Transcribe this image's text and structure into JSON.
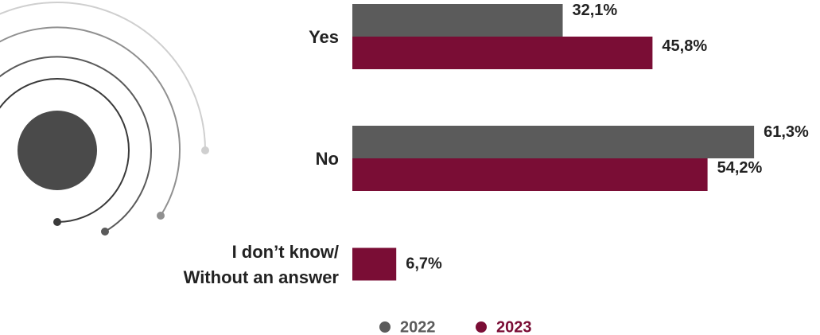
{
  "chart_data": {
    "type": "bar",
    "orientation": "horizontal",
    "categories": [
      "Yes",
      "No",
      "I don’t know/\nWithout an answer"
    ],
    "series": [
      {
        "name": "2022",
        "color": "#5b5b5b",
        "values": [
          32.1,
          61.3,
          null
        ],
        "value_labels": [
          "32,1%",
          "61,3%",
          null
        ]
      },
      {
        "name": "2023",
        "color": "#7a0d35",
        "values": [
          45.8,
          54.2,
          6.7
        ],
        "value_labels": [
          "45,8%",
          "54,2%",
          "6,7%"
        ]
      }
    ]
  }
}
